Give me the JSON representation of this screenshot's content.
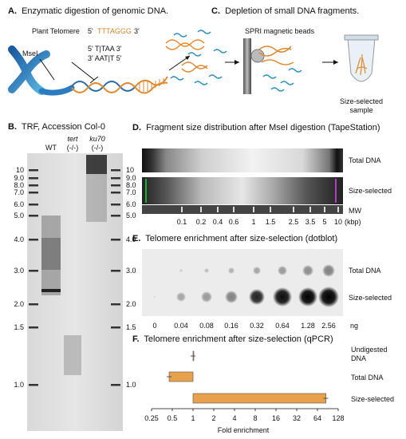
{
  "panelA": {
    "title_letter": "A.",
    "title": "Enzymatic digestion of genomic DNA.",
    "telomere_label": "Plant Telomere",
    "seq_five": "5'",
    "seq": "TTTAGGG",
    "seq_three": "3'",
    "enzyme": "MseI",
    "site_top": "5' T|TAA 3'",
    "site_bot": "3' AAT|T 5'"
  },
  "panelC": {
    "title_letter": "C.",
    "title": "Depletion of small DNA fragments.",
    "beads_label": "SPRI magnetic beads",
    "sample_label_1": "Size-selected",
    "sample_label_2": "sample"
  },
  "panelB": {
    "title_letter": "B.",
    "title": "TRF, Accession Col-0",
    "lanes": [
      "WT",
      "tert\n(-/-)",
      "ku70\n(-/-)"
    ],
    "lane_wt": "WT",
    "lane_tert_1": "tert",
    "lane_tert_2": "(-/-)",
    "lane_ku70_1": "ku70",
    "lane_ku70_2": "(-/-)",
    "markers": [
      "10",
      "9.0",
      "8.0",
      "7.0",
      "6.0",
      "5.0",
      "4.0",
      "3.0",
      "2.0",
      "1.5",
      "1.0"
    ]
  },
  "panelD": {
    "title_letter": "D.",
    "title": "Fragment size distribution after MseI digestion (TapeStation)",
    "row_total": "Total DNA",
    "row_size": "Size-selected",
    "row_mw": "MW",
    "mw_ticks": [
      "0.1",
      "0.2",
      "0.4",
      "0.6",
      "1",
      "1.5",
      "2.5",
      "3.5",
      "5",
      "10"
    ],
    "unit": "(kbp)"
  },
  "panelE": {
    "title_letter": "E.",
    "title": "Telomere enrichment after size-selection (dotblot)",
    "row_total": "Total DNA",
    "row_size": "Size-selected",
    "amounts": [
      "0",
      "0.04",
      "0.08",
      "0.16",
      "0.32",
      "0.64",
      "1.28",
      "2.56"
    ],
    "unit": "ng"
  },
  "panelF": {
    "title_letter": "F.",
    "title": "Telomere enrichment after size-selection (qPCR)",
    "xlabel": "Fold enrichment",
    "chart_data": {
      "type": "bar",
      "orientation": "horizontal",
      "x_scale": "log2",
      "xlim": [
        0.25,
        128
      ],
      "x_ticks": [
        "0.25",
        "0.5",
        "1",
        "2",
        "4",
        "8",
        "16",
        "32",
        "64",
        "128"
      ],
      "categories": [
        "Undigested DNA",
        "Total DNA",
        "Size-selected"
      ],
      "values": [
        1,
        0.45,
        85
      ],
      "bar_color": "#e8a04b"
    },
    "cat_undigested_1": "Undigested",
    "cat_undigested_2": "DNA",
    "cat_total": "Total DNA",
    "cat_size": "Size-selected"
  }
}
